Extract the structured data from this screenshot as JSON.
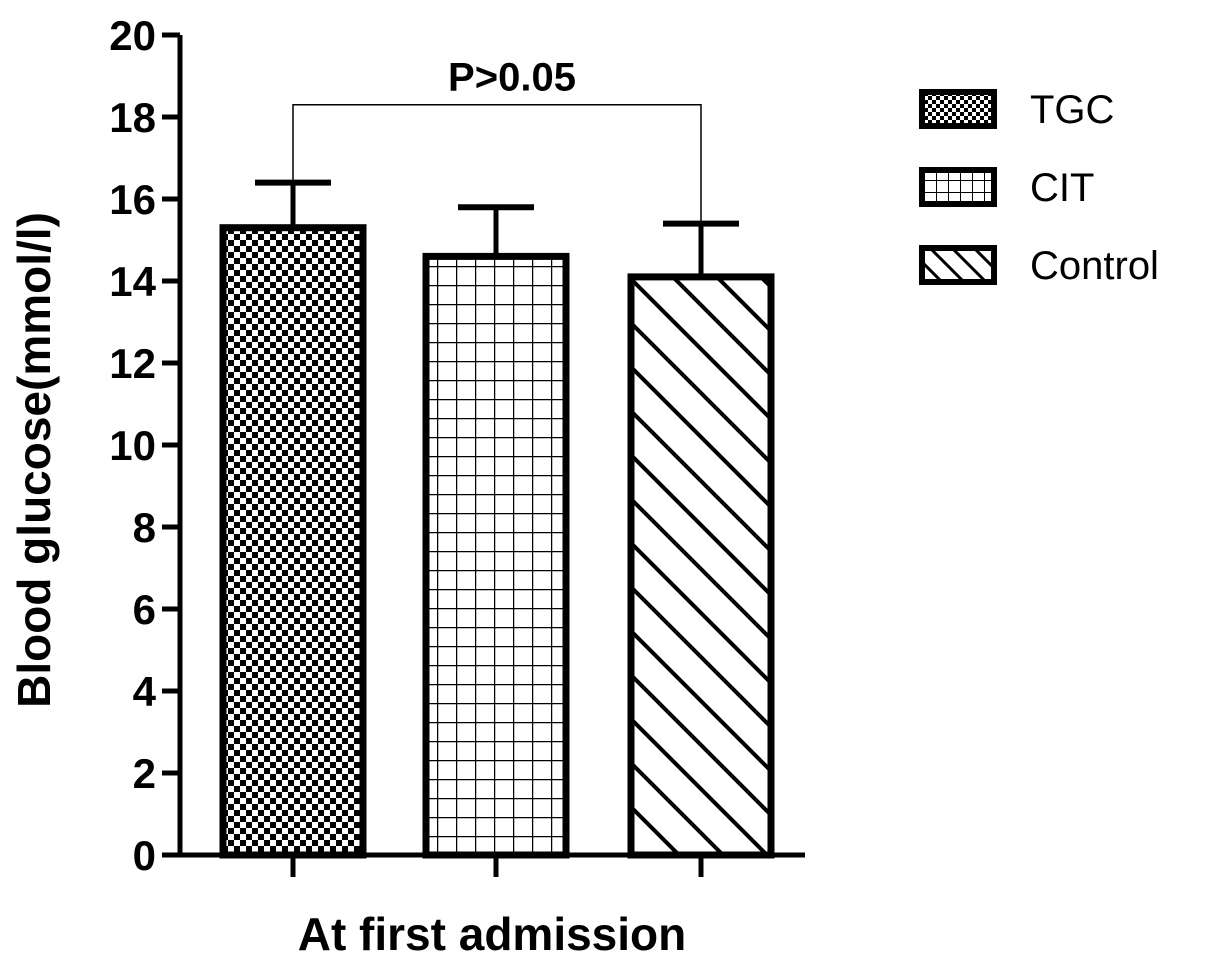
{
  "chart_data": {
    "type": "bar",
    "title": "",
    "xlabel": "At first admission",
    "ylabel": "Blood glucose(mmol/l)",
    "ylim": [
      0,
      20
    ],
    "yticks": [
      0,
      2,
      4,
      6,
      8,
      10,
      12,
      14,
      16,
      18,
      20
    ],
    "grid": false,
    "legend_position": "top-right",
    "series": [
      {
        "name": "TGC",
        "value": 15.3,
        "error": 1.1,
        "pattern": "checker"
      },
      {
        "name": "CIT",
        "value": 14.6,
        "error": 1.2,
        "pattern": "grid"
      },
      {
        "name": "Control",
        "value": 14.1,
        "error": 1.3,
        "pattern": "diagonal"
      }
    ],
    "annotation": {
      "text": "P>0.05",
      "from_series": "TGC",
      "to_series": "Control"
    }
  }
}
